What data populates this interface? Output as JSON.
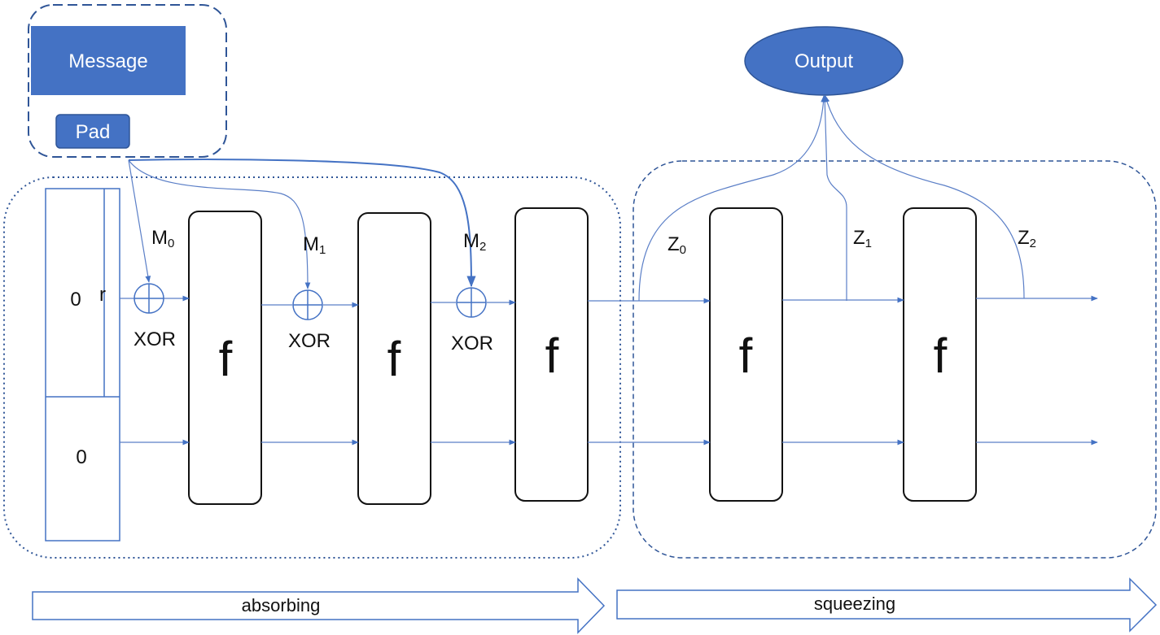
{
  "input": {
    "message_label": "Message",
    "pad_label": "Pad"
  },
  "output": {
    "label": "Output"
  },
  "state": {
    "rate_value": "0",
    "rate_label": "r",
    "capacity_value": "0"
  },
  "absorb": {
    "blocks": [
      {
        "m": "M",
        "sub": "0"
      },
      {
        "m": "M",
        "sub": "1"
      },
      {
        "m": "M",
        "sub": "2"
      }
    ],
    "xor_label": "XOR"
  },
  "squeeze": {
    "outputs": [
      {
        "z": "Z",
        "sub": "0"
      },
      {
        "z": "Z",
        "sub": "1"
      },
      {
        "z": "Z",
        "sub": "2"
      }
    ]
  },
  "function_label": "f",
  "phases": {
    "absorbing": "absorbing",
    "squeezing": "squeezing"
  },
  "colors": {
    "accent": "#4472c4",
    "accent_dark": "#2f5597",
    "line": "#5b7fc7",
    "text": "#111111"
  }
}
